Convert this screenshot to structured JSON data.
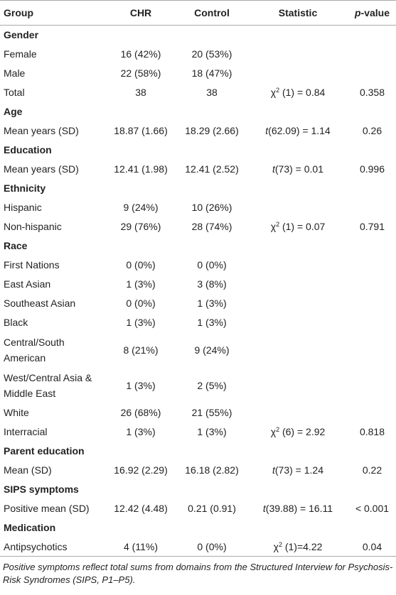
{
  "table": {
    "header": [
      [
        {
          "text": "Group"
        }
      ],
      [
        {
          "text": "CHR"
        }
      ],
      [
        {
          "text": "Control"
        }
      ],
      [
        {
          "text": "Statistic"
        }
      ],
      [
        {
          "italic": "p"
        },
        {
          "text": "-value"
        }
      ]
    ],
    "sections": [
      {
        "title": "Gender",
        "rows": [
          {
            "label": "Female",
            "chr": "16 (42%)",
            "control": "20 (53%)"
          },
          {
            "label": "Male",
            "chr": "22 (58%)",
            "control": "18 (47%)"
          },
          {
            "label": "Total",
            "chr": "38",
            "control": "38",
            "statistic": [
              {
                "text": "χ"
              },
              {
                "sup": "2"
              },
              {
                "text": " (1) = 0.84"
              }
            ],
            "p": "0.358"
          }
        ]
      },
      {
        "title": "Age",
        "rows": [
          {
            "label": "Mean years (SD)",
            "chr": "18.87 (1.66)",
            "control": "18.29 (2.66)",
            "statistic": [
              {
                "italic": "t"
              },
              {
                "text": "(62.09) = 1.14"
              }
            ],
            "p": "0.26"
          }
        ]
      },
      {
        "title": "Education",
        "rows": [
          {
            "label": "Mean years (SD)",
            "chr": "12.41 (1.98)",
            "control": "12.41 (2.52)",
            "statistic": [
              {
                "italic": "t"
              },
              {
                "text": "(73) = 0.01"
              }
            ],
            "p": "0.996"
          }
        ]
      },
      {
        "title": "Ethnicity",
        "rows": [
          {
            "label": "Hispanic",
            "chr": "9 (24%)",
            "control": "10 (26%)"
          },
          {
            "label": "Non-hispanic",
            "chr": "29 (76%)",
            "control": "28 (74%)",
            "statistic": [
              {
                "text": "χ"
              },
              {
                "sup": "2"
              },
              {
                "text": " (1) = 0.07"
              }
            ],
            "p": "0.791"
          }
        ]
      },
      {
        "title": "Race",
        "rows": [
          {
            "label": "First Nations",
            "chr": "0 (0%)",
            "control": "0 (0%)"
          },
          {
            "label": "East Asian",
            "chr": "1 (3%)",
            "control": "3 (8%)"
          },
          {
            "label": "Southeast Asian",
            "chr": "0 (0%)",
            "control": "1 (3%)"
          },
          {
            "label": "Black",
            "chr": "1 (3%)",
            "control": "1 (3%)"
          },
          {
            "label": "Central/South American",
            "chr": "8 (21%)",
            "control": "9 (24%)"
          },
          {
            "label": "West/Central Asia & Middle East",
            "chr": "1 (3%)",
            "control": "2 (5%)"
          },
          {
            "label": "White",
            "chr": "26 (68%)",
            "control": "21 (55%)"
          },
          {
            "label": "Interracial",
            "chr": "1 (3%)",
            "control": "1 (3%)",
            "statistic": [
              {
                "text": "χ"
              },
              {
                "sup": "2"
              },
              {
                "text": " (6) = 2.92"
              }
            ],
            "p": "0.818"
          }
        ]
      },
      {
        "title": "Parent education",
        "rows": [
          {
            "label": "Mean (SD)",
            "chr": "16.92 (2.29)",
            "control": "16.18 (2.82)",
            "statistic": [
              {
                "italic": "t"
              },
              {
                "text": "(73) = 1.24"
              }
            ],
            "p": "0.22"
          }
        ]
      },
      {
        "title": "SIPS symptoms",
        "rows": [
          {
            "label": "Positive mean (SD)",
            "chr": "12.42 (4.48)",
            "control": "0.21 (0.91)",
            "statistic": [
              {
                "italic": "t"
              },
              {
                "text": "(39.88) = 16.11"
              }
            ],
            "p": "< 0.001"
          }
        ]
      },
      {
        "title": "Medication",
        "rows": [
          {
            "label": "Antipsychotics",
            "chr": "4 (11%)",
            "control": "0 (0%)",
            "statistic": [
              {
                "text": "χ"
              },
              {
                "sup": "2"
              },
              {
                "text": " (1)=4.22"
              }
            ],
            "p": "0.04"
          }
        ]
      }
    ],
    "footnote": "Positive symptoms reflect total sums from domains from the Structured Interview for Psychosis-Risk Syndromes (SIPS, P1–P5)."
  }
}
